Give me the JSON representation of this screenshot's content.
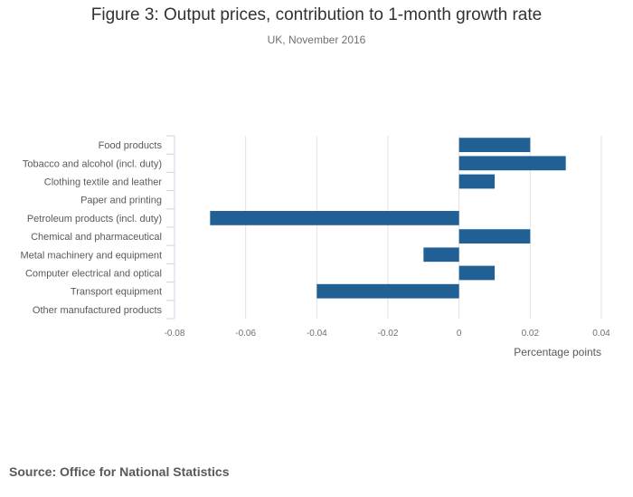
{
  "chart_data": {
    "type": "bar",
    "orientation": "horizontal",
    "title": "Figure 3: Output prices, contribution to 1-month growth rate",
    "subtitle": "UK, November 2016",
    "xlabel": "Percentage points",
    "ylabel": "",
    "categories": [
      "Food products",
      "Tobacco and alcohol (incl. duty)",
      "Clothing textile and leather",
      "Paper and printing",
      "Petroleum products (incl. duty)",
      "Chemical and pharmaceutical",
      "Metal machinery and equipment",
      "Computer electrical and optical",
      "Transport equipment",
      "Other manufactured products"
    ],
    "values": [
      0.02,
      0.03,
      0.01,
      0,
      -0.07,
      0.02,
      -0.01,
      0.01,
      -0.04,
      0
    ],
    "xlim": [
      -0.08,
      0.04
    ],
    "xticks": [
      -0.08,
      -0.06,
      -0.04,
      -0.02,
      0,
      0.02,
      0.04
    ],
    "xtick_labels": [
      "-0.08",
      "-0.06",
      "-0.04",
      "-0.02",
      "0",
      "0.02",
      "0.04"
    ],
    "grid": true,
    "legend": "none",
    "bar_color": "#206095"
  },
  "source": "Source: Office for National Statistics"
}
